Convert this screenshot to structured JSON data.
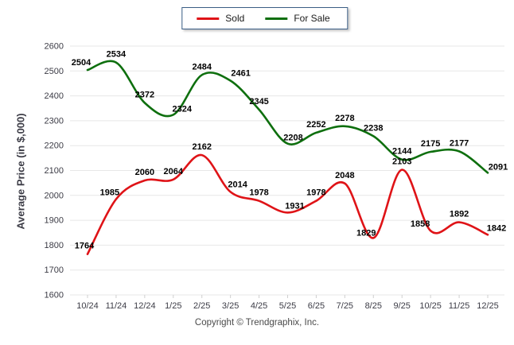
{
  "page": {
    "footer": "Copyright © Trendgraphix, Inc."
  },
  "legend": {
    "items": [
      {
        "label": "Sold",
        "color": "#df1317"
      },
      {
        "label": "For Sale",
        "color": "#0e6f0e"
      }
    ],
    "border_color": "#3a5d85"
  },
  "chart_data": {
    "type": "line",
    "title": "",
    "categories": [
      "10/24",
      "11/24",
      "12/24",
      "1/25",
      "2/25",
      "3/25",
      "4/25",
      "5/25",
      "6/25",
      "7/25",
      "8/25",
      "9/25",
      "10/25",
      "11/25",
      "12/25"
    ],
    "series": [
      {
        "name": "Sold",
        "color": "#df1317",
        "values": [
          1764,
          1985,
          2060,
          2064,
          2162,
          2014,
          1978,
          1931,
          1978,
          2048,
          1829,
          2103,
          1858,
          1892,
          1842
        ]
      },
      {
        "name": "For Sale",
        "color": "#0e6f0e",
        "values": [
          2504,
          2534,
          2372,
          2324,
          2484,
          2461,
          2345,
          2208,
          2252,
          2278,
          2238,
          2144,
          2175,
          2177,
          2091
        ]
      }
    ],
    "xlabel": "",
    "ylabel": "Average Price (in $,000)",
    "ylim": [
      1600,
      2600
    ],
    "ytick_step": 100,
    "grid": true,
    "grid_color": "#e7e7e7",
    "tick_label_color": "#3c3c46",
    "value_label_color": "#000000",
    "legend_position": "top-center",
    "smooth": true,
    "value_labels": true
  }
}
